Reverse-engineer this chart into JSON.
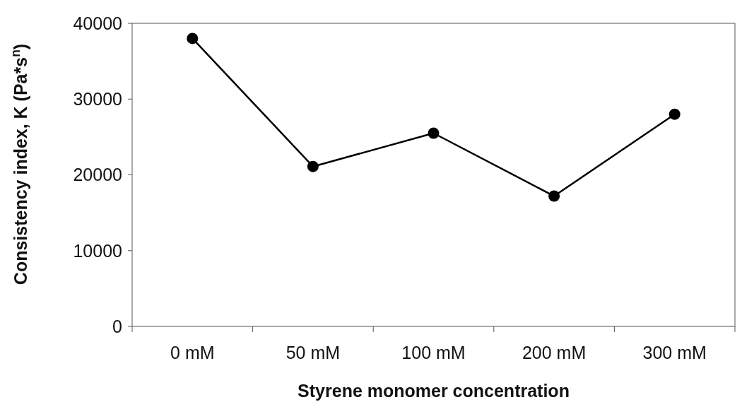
{
  "chart_data": {
    "type": "line",
    "xlabel": "Styrene monomer concentration",
    "ylabel": "Consistency index, K (Pa*s$^{n}$)",
    "categories": [
      "0 mM",
      "50 mM",
      "100 mM",
      "200 mM",
      "300 mM"
    ],
    "series": [
      {
        "color": "#000000",
        "values": [
          38000,
          21100,
          25500,
          17200,
          28000
        ]
      }
    ],
    "ylim": [
      0,
      40000
    ],
    "yticks": [
      0,
      10000,
      20000,
      30000,
      40000
    ],
    "grid": false,
    "marker": "circle",
    "line_style": "solid"
  }
}
